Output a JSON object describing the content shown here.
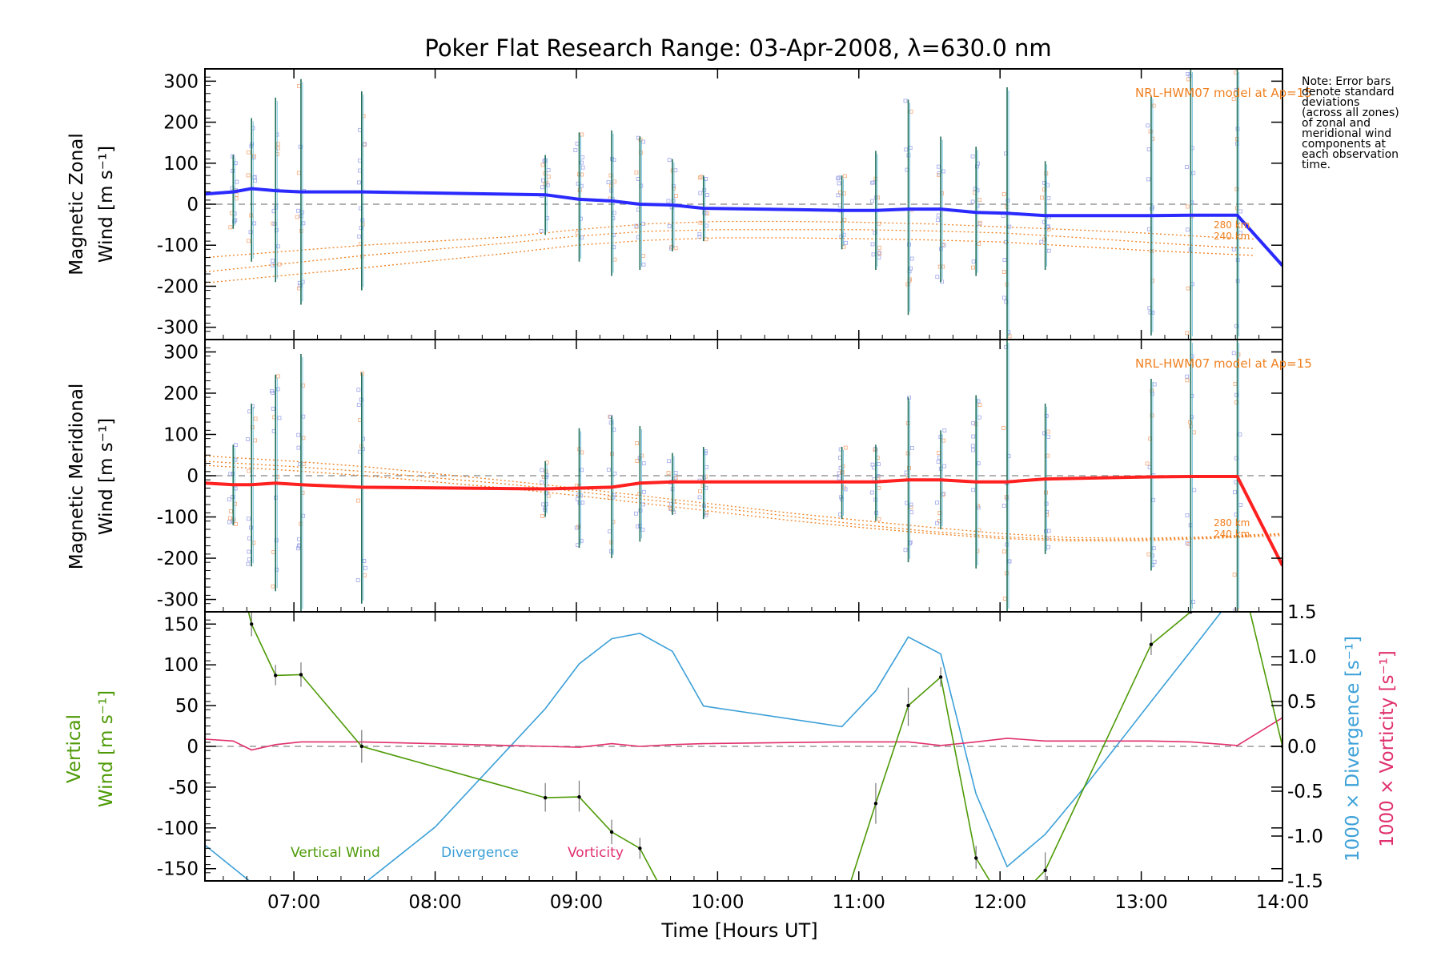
{
  "chart_data": [
    {
      "type": "line",
      "title": "Poker Flat Research Range: 03-Apr-2008, λ=630.0 nm",
      "ylabel_line1": "Magnetic Zonal",
      "ylabel_line2": "Wind [m s⁻¹]",
      "ylim": [
        -330,
        330
      ],
      "yticks": [
        -300,
        -200,
        -100,
        0,
        100,
        200,
        300
      ],
      "xlim": [
        6.37,
        14.0
      ],
      "model_label": "NRL-HWM07 model at Ap=15",
      "alt_labels": [
        "280 km",
        "240 km"
      ],
      "series": [
        {
          "x": [
            6.37,
            6.57,
            6.7,
            6.87,
            7.05,
            7.48,
            8.78,
            9.02,
            9.25,
            9.45,
            9.68,
            9.9,
            10.88,
            11.12,
            11.35,
            11.58,
            11.83,
            12.05,
            12.32,
            13.07,
            13.35,
            13.68,
            14.0
          ],
          "y": [
            25,
            30,
            38,
            33,
            30,
            30,
            23,
            12,
            8,
            0,
            -2,
            -10,
            -15,
            -15,
            -12,
            -12,
            -20,
            -22,
            -28,
            -28,
            -27,
            -27,
            -150
          ]
        }
      ],
      "model_lines": [
        {
          "x": [
            6.37,
            7.5,
            8.5,
            9.0,
            9.5,
            10.0,
            10.5,
            11.0,
            11.5,
            12.0,
            12.5,
            13.0,
            13.5,
            13.8
          ],
          "y": [
            -130,
            -100,
            -80,
            -62,
            -48,
            -42,
            -42,
            -44,
            -48,
            -55,
            -62,
            -70,
            -80,
            -85
          ]
        },
        {
          "x": [
            6.37,
            7.5,
            8.5,
            9.0,
            9.5,
            10.0,
            10.5,
            11.0,
            11.5,
            12.0,
            12.5,
            13.0,
            13.5,
            13.8
          ],
          "y": [
            -165,
            -125,
            -95,
            -78,
            -66,
            -62,
            -62,
            -62,
            -65,
            -70,
            -80,
            -92,
            -103,
            -108
          ]
        },
        {
          "x": [
            6.37,
            7.5,
            8.5,
            9.0,
            9.5,
            10.0,
            10.5,
            11.0,
            11.5,
            12.0,
            12.5,
            13.0,
            13.5,
            13.8
          ],
          "y": [
            -192,
            -155,
            -120,
            -100,
            -88,
            -82,
            -82,
            -84,
            -87,
            -92,
            -102,
            -112,
            -120,
            -125
          ]
        }
      ],
      "errorbars": [
        {
          "x": 6.57,
          "lo": -60,
          "hi": 120
        },
        {
          "x": 6.7,
          "lo": -140,
          "hi": 210
        },
        {
          "x": 6.87,
          "lo": -190,
          "hi": 260
        },
        {
          "x": 7.05,
          "lo": -245,
          "hi": 305
        },
        {
          "x": 7.48,
          "lo": -210,
          "hi": 275
        },
        {
          "x": 8.78,
          "lo": -75,
          "hi": 120
        },
        {
          "x": 9.02,
          "lo": -140,
          "hi": 175
        },
        {
          "x": 9.25,
          "lo": -175,
          "hi": 180
        },
        {
          "x": 9.45,
          "lo": -160,
          "hi": 165
        },
        {
          "x": 9.68,
          "lo": -115,
          "hi": 110
        },
        {
          "x": 9.9,
          "lo": -90,
          "hi": 70
        },
        {
          "x": 10.88,
          "lo": -110,
          "hi": 70
        },
        {
          "x": 11.12,
          "lo": -160,
          "hi": 130
        },
        {
          "x": 11.35,
          "lo": -270,
          "hi": 255
        },
        {
          "x": 11.58,
          "lo": -190,
          "hi": 165
        },
        {
          "x": 11.83,
          "lo": -175,
          "hi": 140
        },
        {
          "x": 12.05,
          "lo": -330,
          "hi": 285
        },
        {
          "x": 12.32,
          "lo": -160,
          "hi": 105
        },
        {
          "x": 13.07,
          "lo": -320,
          "hi": 265
        },
        {
          "x": 13.35,
          "lo": -330,
          "hi": 330
        },
        {
          "x": 13.68,
          "lo": -330,
          "hi": 330
        }
      ]
    },
    {
      "type": "line",
      "ylabel_line1": "Magnetic Meridional",
      "ylabel_line2": "Wind [m s⁻¹]",
      "ylim": [
        -330,
        330
      ],
      "yticks": [
        -300,
        -200,
        -100,
        0,
        100,
        200,
        300
      ],
      "xlim": [
        6.37,
        14.0
      ],
      "model_label": "NRL-HWM07 model at Ap=15",
      "alt_labels": [
        "280 km",
        "240 km"
      ],
      "series": [
        {
          "x": [
            6.37,
            6.57,
            6.7,
            6.87,
            7.05,
            7.48,
            8.78,
            9.02,
            9.25,
            9.45,
            9.68,
            9.9,
            10.88,
            11.12,
            11.35,
            11.58,
            11.83,
            12.05,
            12.32,
            13.07,
            13.35,
            13.68,
            14.0
          ],
          "y": [
            -18,
            -22,
            -22,
            -18,
            -22,
            -28,
            -32,
            -30,
            -28,
            -18,
            -15,
            -15,
            -15,
            -15,
            -10,
            -10,
            -15,
            -15,
            -8,
            -3,
            -2,
            -2,
            -218
          ]
        }
      ],
      "model_lines": [
        {
          "x": [
            6.37,
            7.0,
            7.5,
            8.0,
            8.5,
            9.0,
            9.5,
            10.0,
            10.5,
            11.0,
            11.5,
            12.0,
            12.5,
            13.0,
            13.5,
            14.0
          ],
          "y": [
            48,
            35,
            22,
            5,
            -12,
            -30,
            -50,
            -70,
            -90,
            -108,
            -125,
            -140,
            -150,
            -152,
            -148,
            -140
          ]
        },
        {
          "x": [
            6.37,
            7.0,
            7.5,
            8.0,
            8.5,
            9.0,
            9.5,
            10.0,
            10.5,
            11.0,
            11.5,
            12.0,
            12.5,
            13.0,
            13.5,
            14.0
          ],
          "y": [
            35,
            22,
            10,
            -5,
            -20,
            -38,
            -58,
            -78,
            -98,
            -118,
            -135,
            -148,
            -155,
            -155,
            -150,
            -142
          ]
        },
        {
          "x": [
            6.37,
            7.0,
            7.5,
            8.0,
            8.5,
            9.0,
            9.5,
            10.0,
            10.5,
            11.0,
            11.5,
            12.0,
            12.5,
            13.0,
            13.5,
            14.0
          ],
          "y": [
            25,
            12,
            0,
            -15,
            -30,
            -48,
            -68,
            -88,
            -108,
            -125,
            -140,
            -152,
            -158,
            -158,
            -152,
            -145
          ]
        }
      ],
      "errorbars": [
        {
          "x": 6.57,
          "lo": -120,
          "hi": 75
        },
        {
          "x": 6.7,
          "lo": -220,
          "hi": 175
        },
        {
          "x": 6.87,
          "lo": -280,
          "hi": 245
        },
        {
          "x": 7.05,
          "lo": -330,
          "hi": 295
        },
        {
          "x": 7.48,
          "lo": -310,
          "hi": 250
        },
        {
          "x": 8.78,
          "lo": -100,
          "hi": 35
        },
        {
          "x": 9.02,
          "lo": -175,
          "hi": 115
        },
        {
          "x": 9.25,
          "lo": -200,
          "hi": 145
        },
        {
          "x": 9.45,
          "lo": -160,
          "hi": 120
        },
        {
          "x": 9.68,
          "lo": -95,
          "hi": 55
        },
        {
          "x": 9.9,
          "lo": -105,
          "hi": 70
        },
        {
          "x": 10.88,
          "lo": -105,
          "hi": 70
        },
        {
          "x": 11.12,
          "lo": -110,
          "hi": 75
        },
        {
          "x": 11.35,
          "lo": -210,
          "hi": 190
        },
        {
          "x": 11.58,
          "lo": -130,
          "hi": 110
        },
        {
          "x": 11.83,
          "lo": -225,
          "hi": 195
        },
        {
          "x": 12.05,
          "lo": -330,
          "hi": 330
        },
        {
          "x": 12.32,
          "lo": -190,
          "hi": 175
        },
        {
          "x": 13.07,
          "lo": -230,
          "hi": 235
        },
        {
          "x": 13.35,
          "lo": -330,
          "hi": 330
        },
        {
          "x": 13.68,
          "lo": -330,
          "hi": 330
        }
      ]
    },
    {
      "type": "line",
      "ylabel_left_line1": "Vertical",
      "ylabel_left_line2": "Wind [m s⁻¹]",
      "ylabel_right1": "1000 × Divergence [s⁻¹]",
      "ylabel_right2": "1000 × Vorticity [s⁻¹]",
      "ylim": [
        -165,
        165
      ],
      "yticks": [
        -150,
        -100,
        -50,
        0,
        50,
        100,
        150
      ],
      "ylim_right": [
        -1.5,
        1.5
      ],
      "yticks_right": [
        -1.5,
        -1.0,
        -0.5,
        0.0,
        0.5,
        1.0,
        1.5
      ],
      "xlim": [
        6.37,
        14.0
      ],
      "xlabel": "Time [Hours UT]",
      "xticks": [
        7,
        8,
        9,
        10,
        11,
        12,
        13,
        14
      ],
      "xtick_labels": [
        "07:00",
        "08:00",
        "09:00",
        "10:00",
        "11:00",
        "12:00",
        "13:00",
        "14:00"
      ],
      "series": [
        {
          "name": "Vertical Wind",
          "axis": "left",
          "x": [
            6.57,
            6.7,
            6.87,
            7.05,
            7.48,
            8.78,
            9.02,
            9.25,
            9.45,
            9.68,
            10.88,
            11.12,
            11.35,
            11.58,
            11.83,
            12.05,
            12.32,
            13.07,
            13.35,
            13.68,
            14.0
          ],
          "y": [
            240,
            150,
            87,
            88,
            0,
            -63,
            -62,
            -105,
            -125,
            -200,
            -200,
            -70,
            50,
            85,
            -137,
            -200,
            -152,
            125,
            165,
            230,
            0
          ]
        },
        {
          "name": "Divergence",
          "axis": "right",
          "x": [
            6.37,
            7.0,
            7.48,
            8.0,
            8.78,
            9.02,
            9.25,
            9.45,
            9.68,
            9.9,
            10.88,
            11.12,
            11.35,
            11.58,
            11.83,
            12.05,
            12.32,
            12.6,
            13.07,
            13.35,
            13.68,
            14.0
          ],
          "y": [
            -1.1,
            -1.9,
            -1.55,
            -0.9,
            0.42,
            0.92,
            1.2,
            1.26,
            1.06,
            0.45,
            0.22,
            0.62,
            1.22,
            1.03,
            -0.53,
            -1.34,
            -0.98,
            -0.45,
            0.5,
            1.06,
            1.73,
            1.75
          ]
        },
        {
          "name": "Vorticity",
          "axis": "right",
          "x": [
            6.37,
            6.57,
            6.7,
            6.87,
            7.05,
            7.48,
            8.78,
            9.02,
            9.25,
            9.45,
            9.68,
            9.9,
            10.88,
            11.12,
            11.35,
            11.58,
            11.83,
            12.05,
            12.32,
            13.07,
            13.35,
            13.68,
            14.0
          ],
          "y": [
            0.08,
            0.06,
            -0.04,
            0.02,
            0.05,
            0.05,
            0.0,
            -0.01,
            0.03,
            0.0,
            0.02,
            0.03,
            0.05,
            0.05,
            0.05,
            0.01,
            0.05,
            0.09,
            0.06,
            0.06,
            0.05,
            0.01,
            0.32
          ]
        }
      ],
      "errorbars": [
        {
          "x": 6.7,
          "lo": 135,
          "hi": 165
        },
        {
          "x": 6.87,
          "lo": 75,
          "hi": 100
        },
        {
          "x": 7.05,
          "lo": 73,
          "hi": 103
        },
        {
          "x": 7.48,
          "lo": -20,
          "hi": 20
        },
        {
          "x": 8.78,
          "lo": -80,
          "hi": -45
        },
        {
          "x": 9.02,
          "lo": -80,
          "hi": -42
        },
        {
          "x": 9.25,
          "lo": -120,
          "hi": -90
        },
        {
          "x": 9.45,
          "lo": -138,
          "hi": -112
        },
        {
          "x": 11.12,
          "lo": -95,
          "hi": -45
        },
        {
          "x": 11.35,
          "lo": 25,
          "hi": 72
        },
        {
          "x": 11.58,
          "lo": 73,
          "hi": 97
        },
        {
          "x": 11.83,
          "lo": -150,
          "hi": -122
        },
        {
          "x": 12.32,
          "lo": -165,
          "hi": -130
        },
        {
          "x": 13.07,
          "lo": 112,
          "hi": 138
        }
      ],
      "legend": [
        "Vertical Wind",
        "Divergence",
        "Vorticity"
      ]
    }
  ],
  "note_lines": [
    "Note: Error bars",
    "denote standard",
    "deviations",
    "(across all zones)",
    "of zonal and",
    "meridional wind",
    "components at",
    "each observation",
    "time."
  ],
  "colors": {
    "zonal": "#2a2aff",
    "meridional": "#ff2020",
    "model": "#f08020",
    "vertical": "#4e9a06",
    "divergence": "#3ca0d8",
    "vorticity": "#e0306e",
    "scatter": "#9fa6ea"
  }
}
